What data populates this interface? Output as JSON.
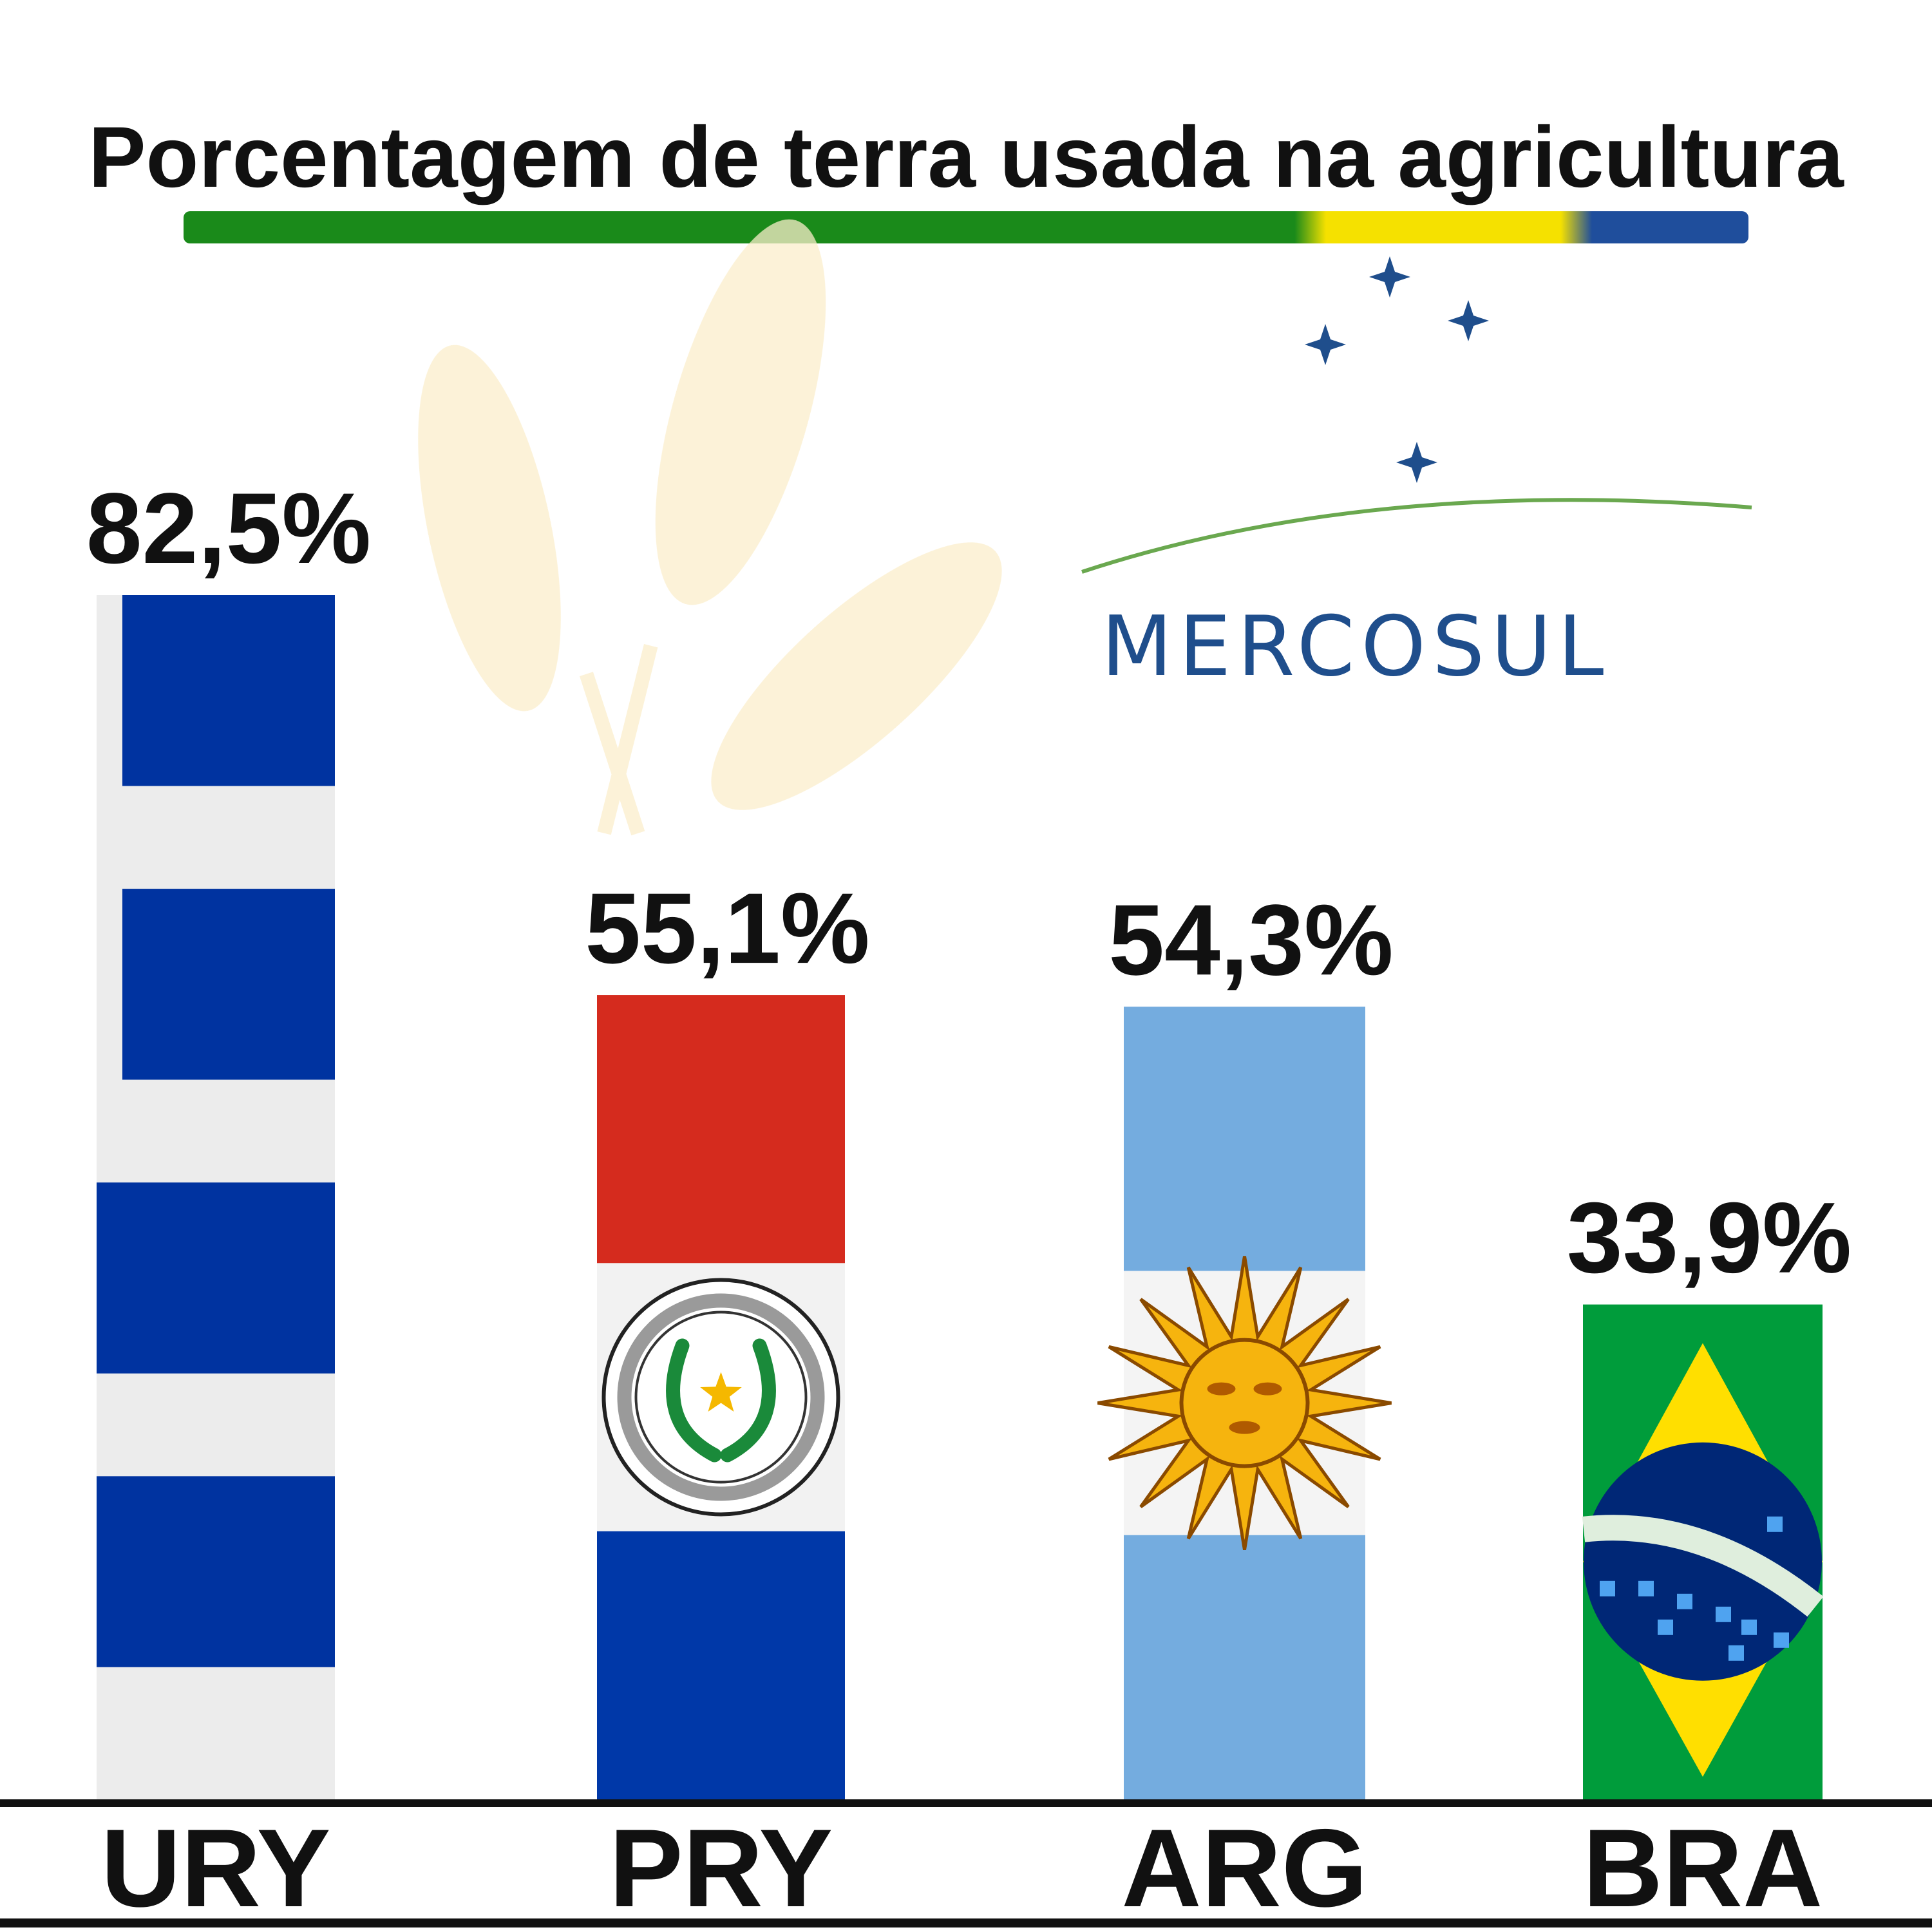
{
  "chart_data": {
    "type": "bar",
    "title": "Porcentagem de terra usada na agricultura",
    "categories": [
      "URY",
      "PRY",
      "ARG",
      "BRA"
    ],
    "values": [
      82.5,
      55.1,
      54.3,
      33.9
    ],
    "value_labels": [
      "82,5%",
      "55,1%",
      "54,3%",
      "33,9%"
    ],
    "bar_styles": [
      "flag-uruguay",
      "flag-paraguay",
      "flag-argentina",
      "flag-brazil"
    ],
    "unit": "%",
    "ylim": [
      0,
      100
    ],
    "grid": false,
    "legend": "none"
  },
  "logo": {
    "text": "MERCOSUL",
    "icon": "southern-cross-stars",
    "color": "#1f4e8c",
    "arc_color": "#6aa84f"
  },
  "decorations": {
    "title_underline": [
      "#1a8a1a",
      "#f5e100",
      "#1f4e9c"
    ],
    "background_icon": "wheat-icon"
  },
  "colors": {
    "uruguay_blue": "#0033a0",
    "uruguay_white": "#ececec",
    "paraguay_red": "#d52b1e",
    "paraguay_blue": "#0038a8",
    "argentina_blue": "#74acdf",
    "argentina_sun": "#f6b40e",
    "brazil_green": "#009c3b",
    "brazil_yellow": "#ffdf00",
    "brazil_blue": "#002776"
  }
}
